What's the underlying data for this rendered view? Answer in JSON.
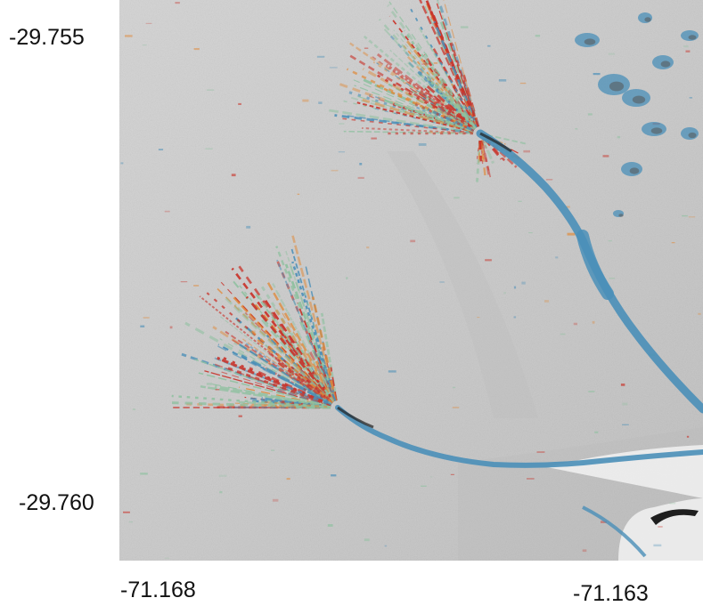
{
  "map": {
    "latitude_labels": [
      "-29.755",
      "-29.760"
    ],
    "longitude_labels": [
      "-71.168",
      "-71.163"
    ],
    "colors": {
      "terrain_light": "#d9d9d9",
      "terrain_mid": "#c4c4c4",
      "channel_blue": "#4a8fb8",
      "deposit_red": "#c9342b",
      "deposit_orange": "#e08a3a",
      "deposit_green": "#8fc1a0",
      "shadow": "#1e1e1e"
    }
  }
}
